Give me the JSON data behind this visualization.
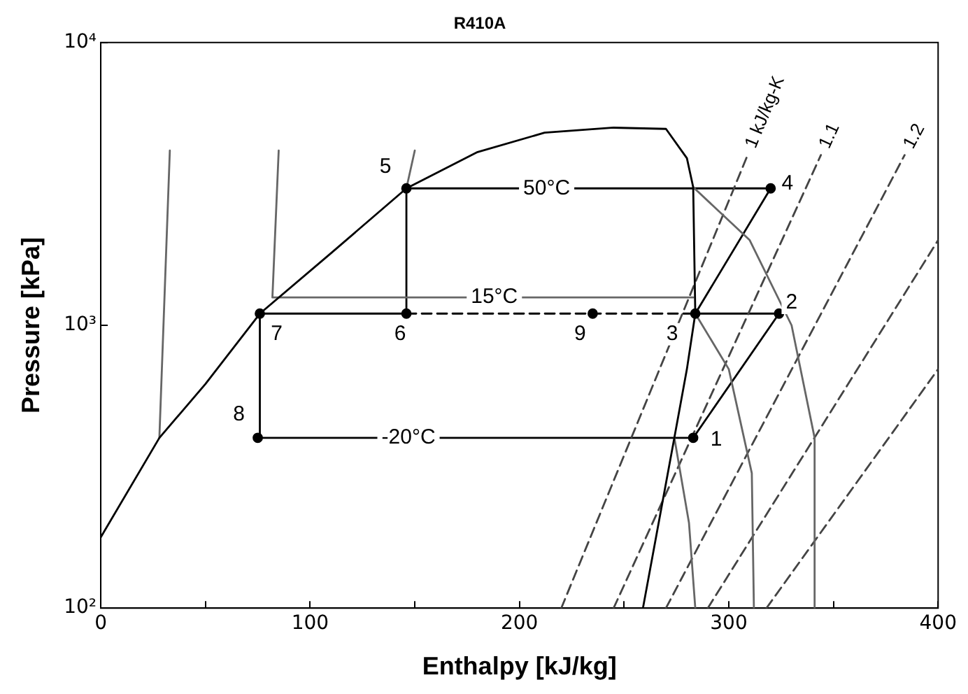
{
  "chart_data": {
    "type": "line",
    "title": "R410A",
    "xlabel": "Enthalpy [kJ/kg]",
    "ylabel": "Pressure [kPa]",
    "xlim": [
      0,
      400
    ],
    "xticks": [
      0,
      {
        "value": 50,
        "label": null
      },
      100,
      {
        "value": 150,
        "label": null
      },
      200,
      {
        "value": 250,
        "label": null
      },
      300,
      {
        "value": 350,
        "label": null
      },
      400
    ],
    "ylim": [
      100,
      10000
    ],
    "yticks": [
      {
        "value": 100,
        "label": "10²"
      },
      {
        "value": 1000,
        "label": "10³"
      },
      {
        "value": 10000,
        "label": "10⁴"
      }
    ],
    "log": "y",
    "grid": false,
    "legend": false,
    "marker": "none",
    "series": [
      {
        "type": "line",
        "color": "#000000",
        "line_style": "solid",
        "x": [
          0,
          28,
          50,
          76,
          110,
          146,
          180,
          212,
          245,
          270,
          280,
          283,
          284,
          280,
          274,
          259
        ],
        "values": [
          178,
          400,
          620,
          1100,
          1800,
          3050,
          4100,
          4800,
          5000,
          4950,
          3900,
          3080,
          1100,
          700,
          400,
          100
        ]
      },
      {
        "type": "line",
        "color": "#666666",
        "line_style": "solid",
        "x": [
          33,
          28
        ],
        "values": [
          4150,
          400
        ]
      },
      {
        "type": "line",
        "color": "#666666",
        "line_style": "solid",
        "x": [
          85,
          82,
          283
        ],
        "values": [
          4150,
          1255,
          1255
        ]
      },
      {
        "type": "line",
        "color": "#666666",
        "line_style": "solid",
        "x": [
          150,
          146
        ],
        "values": [
          4150,
          3050
        ]
      },
      {
        "type": "line",
        "color": "#666666",
        "line_style": "solid",
        "x": [
          283,
          310,
          330,
          341,
          341
        ],
        "values": [
          3080,
          2000,
          1000,
          400,
          100
        ]
      },
      {
        "type": "line",
        "color": "#666666",
        "line_style": "solid",
        "x": [
          284,
          300,
          311,
          312
        ],
        "values": [
          1100,
          700,
          300,
          100
        ]
      },
      {
        "type": "line",
        "color": "#666666",
        "line_style": "solid",
        "x": [
          274,
          281,
          284
        ],
        "values": [
          400,
          200,
          100
        ]
      },
      {
        "type": "line",
        "name": "1 kJ/kg-K",
        "color": "#444444",
        "line_style": "dashed",
        "x": [
          220,
          309
        ],
        "values": [
          100,
          4000
        ]
      },
      {
        "type": "line",
        "name": "1.1",
        "color": "#444444",
        "line_style": "dashed",
        "x": [
          245,
          344
        ],
        "values": [
          100,
          4000
        ]
      },
      {
        "type": "line",
        "name": "1.2",
        "color": "#444444",
        "line_style": "dashed",
        "x": [
          270,
          384
        ],
        "values": [
          100,
          4000
        ]
      },
      {
        "type": "line",
        "color": "#444444",
        "line_style": "dashed",
        "x": [
          290,
          400
        ],
        "values": [
          100,
          2000
        ]
      },
      {
        "type": "line",
        "color": "#444444",
        "line_style": "dashed",
        "x": [
          318,
          400
        ],
        "values": [
          100,
          700
        ]
      },
      {
        "type": "line",
        "color": "#000000",
        "line_style": "solid",
        "x": [
          283,
          324
        ],
        "values": [
          400,
          1100
        ]
      },
      {
        "type": "line",
        "color": "#000000",
        "line_style": "solid",
        "x": [
          284,
          324
        ],
        "values": [
          1100,
          1100
        ]
      },
      {
        "type": "line",
        "color": "#000000",
        "line_style": "solid",
        "x": [
          284,
          320
        ],
        "values": [
          1100,
          3050
        ]
      },
      {
        "type": "line",
        "color": "#000000",
        "line_style": "solid",
        "x": [
          146,
          320
        ],
        "values": [
          3050,
          3050
        ]
      },
      {
        "type": "line",
        "color": "#000000",
        "line_style": "solid",
        "x": [
          146,
          146
        ],
        "values": [
          1100,
          3050
        ]
      },
      {
        "type": "line",
        "color": "#000000",
        "line_style": "solid",
        "x": [
          76,
          146
        ],
        "values": [
          1100,
          1100
        ]
      },
      {
        "type": "line",
        "color": "#000000",
        "line_style": "solid",
        "x": [
          76,
          76
        ],
        "values": [
          400,
          1100
        ]
      },
      {
        "type": "line",
        "color": "#000000",
        "line_style": "solid",
        "x": [
          76,
          283
        ],
        "values": [
          400,
          400
        ]
      },
      {
        "type": "line",
        "color": "#000000",
        "line_style": "dashed",
        "x": [
          146,
          284
        ],
        "values": [
          1100,
          1100
        ]
      },
      {
        "type": "scatter",
        "color": "#000000",
        "marker": "circle",
        "x": [
          283,
          324,
          284,
          320,
          146,
          146,
          76,
          75,
          235
        ],
        "values": [
          400,
          1100,
          1100,
          3050,
          3050,
          1100,
          1100,
          400,
          1100
        ]
      }
    ],
    "annotations": [
      {
        "text": "50°C",
        "x": 213,
        "y": 3050
      },
      {
        "text": "15°C",
        "x": 188,
        "y": 1255
      },
      {
        "text": "-20°C",
        "x": 147,
        "y": 400
      },
      {
        "text": "1",
        "x": 294,
        "y": 393
      },
      {
        "text": "2",
        "x": 330,
        "y": 1200
      },
      {
        "text": "3",
        "x": 273,
        "y": 930
      },
      {
        "text": "4",
        "x": 328,
        "y": 3170
      },
      {
        "text": "5",
        "x": 136,
        "y": 3620
      },
      {
        "text": "6",
        "x": 143,
        "y": 930
      },
      {
        "text": "7",
        "x": 84,
        "y": 930
      },
      {
        "text": "8",
        "x": 66,
        "y": 484
      },
      {
        "text": "9",
        "x": 229,
        "y": 930
      }
    ]
  }
}
